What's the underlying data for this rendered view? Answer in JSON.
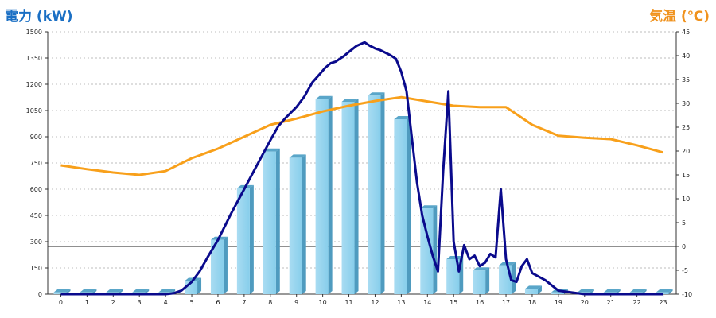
{
  "chart_data": {
    "type": "bar",
    "left_axis_title": "電力 (kW)",
    "right_axis_title": "気温 (℃)",
    "categories": [
      "0",
      "1",
      "2",
      "3",
      "4",
      "5",
      "6",
      "7",
      "8",
      "9",
      "10",
      "11",
      "12",
      "13",
      "14",
      "15",
      "16",
      "17",
      "18",
      "19",
      "20",
      "21",
      "22",
      "23"
    ],
    "y_left": {
      "min": 0,
      "max": 1500,
      "ticks": [
        0,
        150,
        300,
        450,
        600,
        750,
        900,
        1050,
        1200,
        1350,
        1500
      ]
    },
    "y_right": {
      "min": -10,
      "max": 45,
      "ticks": [
        -10,
        -5,
        0,
        5,
        10,
        15,
        20,
        25,
        30,
        35,
        40,
        45
      ]
    },
    "grid": true,
    "bars": {
      "axis": "left",
      "color": "#87ceeb",
      "values": [
        10,
        10,
        10,
        10,
        10,
        75,
        310,
        605,
        815,
        780,
        1115,
        1100,
        1135,
        1000,
        490,
        200,
        135,
        165,
        30,
        10,
        10,
        10,
        10,
        10
      ]
    },
    "power_line": {
      "axis": "left",
      "color": "#0a0a8c",
      "x": [
        0,
        1,
        2,
        3,
        4,
        4.3,
        4.6,
        5,
        5.3,
        5.6,
        6,
        6.5,
        7,
        7.5,
        8,
        8.3,
        8.6,
        9,
        9.3,
        9.6,
        9.9,
        10.1,
        10.3,
        10.5,
        10.8,
        11,
        11.3,
        11.6,
        11.8,
        12,
        12.2,
        12.4,
        12.6,
        12.8,
        13,
        13.2,
        13.4,
        13.6,
        13.8,
        14,
        14.2,
        14.4,
        14.6,
        14.8,
        15,
        15.2,
        15.4,
        15.6,
        15.8,
        16,
        16.2,
        16.4,
        16.6,
        16.8,
        17,
        17.2,
        17.4,
        17.6,
        17.8,
        18,
        18.5,
        19,
        20,
        21,
        22,
        23
      ],
      "y": [
        0,
        0,
        0,
        0,
        0,
        5,
        20,
        70,
        130,
        210,
        310,
        460,
        600,
        740,
        880,
        960,
        1010,
        1070,
        1130,
        1210,
        1260,
        1295,
        1320,
        1330,
        1360,
        1385,
        1420,
        1440,
        1420,
        1405,
        1395,
        1380,
        1365,
        1345,
        1270,
        1160,
        900,
        640,
        450,
        330,
        220,
        130,
        700,
        1160,
        300,
        130,
        280,
        200,
        220,
        160,
        180,
        230,
        210,
        600,
        200,
        80,
        70,
        160,
        200,
        120,
        80,
        20,
        0,
        0,
        0,
        0
      ]
    },
    "temperature_line": {
      "axis": "right",
      "color": "#f8a01b",
      "x": [
        0,
        1,
        2,
        3,
        4,
        5,
        6,
        7,
        8,
        9,
        10,
        11,
        12,
        13,
        14,
        15,
        16,
        17,
        18,
        19,
        20,
        21,
        22,
        23
      ],
      "y": [
        17,
        16.2,
        15.5,
        15,
        15.8,
        18.5,
        20.5,
        23,
        25.5,
        26.8,
        28.3,
        29.5,
        30.5,
        31.3,
        30.4,
        29.5,
        29.2,
        29.2,
        25.5,
        23.2,
        22.8,
        22.5,
        21.2,
        19.7
      ]
    }
  }
}
